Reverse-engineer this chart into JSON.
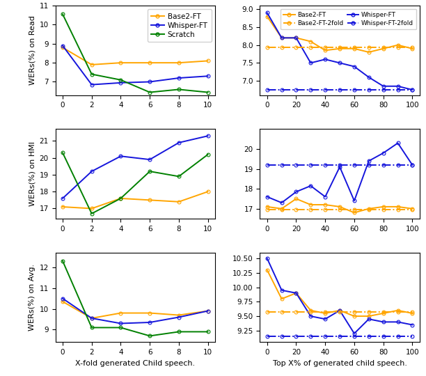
{
  "left_col": {
    "read": {
      "x": [
        0,
        2,
        4,
        6,
        8,
        10
      ],
      "base2_ft": [
        8.8,
        7.9,
        8.0,
        8.0,
        8.0,
        8.1
      ],
      "whisper_ft": [
        8.9,
        6.85,
        6.95,
        7.0,
        7.2,
        7.3
      ],
      "scratch": [
        10.55,
        7.4,
        7.1,
        6.45,
        6.6,
        6.45
      ],
      "ylim": [
        6.3,
        11.0
      ],
      "yticks": [
        7,
        8,
        9,
        10,
        11
      ],
      "ylabel": "WERs(%) on Read"
    },
    "hmi": {
      "x": [
        0,
        2,
        4,
        6,
        8,
        10
      ],
      "base2_ft": [
        17.1,
        17.0,
        17.6,
        17.5,
        17.4,
        18.0
      ],
      "whisper_ft": [
        17.6,
        19.2,
        20.1,
        19.9,
        20.9,
        21.3
      ],
      "scratch": [
        20.3,
        16.7,
        17.6,
        19.2,
        18.9,
        20.2
      ],
      "ylim": [
        16.4,
        21.7
      ],
      "yticks": [
        17,
        18,
        19,
        20,
        21
      ],
      "ylabel": "WERs(%) on HMI"
    },
    "avg": {
      "x": [
        0,
        2,
        4,
        6,
        8,
        10
      ],
      "base2_ft": [
        10.35,
        9.55,
        9.8,
        9.8,
        9.7,
        9.9
      ],
      "whisper_ft": [
        10.5,
        9.55,
        9.3,
        9.35,
        9.6,
        9.9
      ],
      "scratch": [
        12.3,
        9.1,
        9.1,
        8.7,
        8.9,
        8.9
      ],
      "ylim": [
        8.4,
        12.7
      ],
      "yticks": [
        9,
        10,
        11,
        12
      ],
      "ylabel": "WERs(%) on Avg.",
      "xlabel": "X-fold generated Child speech."
    }
  },
  "right_col": {
    "read": {
      "x": [
        0,
        10,
        20,
        30,
        40,
        50,
        60,
        70,
        80,
        90,
        100
      ],
      "base2_ft": [
        8.8,
        8.2,
        8.2,
        8.1,
        7.85,
        7.9,
        7.9,
        7.8,
        7.9,
        8.0,
        7.9
      ],
      "base2_ft_2fold": [
        7.93,
        7.93,
        7.93,
        7.93,
        7.93,
        7.93,
        7.93,
        7.93,
        7.93,
        7.93,
        7.93
      ],
      "whisper_ft": [
        8.9,
        8.2,
        8.2,
        7.5,
        7.6,
        7.5,
        7.4,
        7.1,
        6.85,
        6.85,
        6.75
      ],
      "whisper_ft_2fold": [
        6.75,
        6.75,
        6.75,
        6.75,
        6.75,
        6.75,
        6.75,
        6.75,
        6.75,
        6.75,
        6.75
      ],
      "ylim": [
        6.6,
        9.1
      ],
      "yticks": [
        7.0,
        7.5,
        8.0,
        8.5,
        9.0
      ],
      "ylabel": ""
    },
    "hmi": {
      "x": [
        0,
        10,
        20,
        30,
        40,
        50,
        60,
        70,
        80,
        90,
        100
      ],
      "base2_ft": [
        17.1,
        17.0,
        17.5,
        17.2,
        17.2,
        17.1,
        16.8,
        17.0,
        17.1,
        17.1,
        17.0
      ],
      "base2_ft_2fold": [
        16.95,
        16.95,
        16.95,
        16.95,
        16.95,
        16.95,
        16.95,
        16.95,
        16.95,
        16.95,
        16.95
      ],
      "whisper_ft": [
        17.6,
        17.3,
        17.85,
        18.15,
        17.6,
        19.1,
        17.4,
        19.4,
        19.8,
        20.3,
        19.2
      ],
      "whisper_ft_2fold": [
        19.2,
        19.2,
        19.2,
        19.2,
        19.2,
        19.2,
        19.2,
        19.2,
        19.2,
        19.2,
        19.2
      ],
      "ylim": [
        16.5,
        21.0
      ],
      "yticks": [
        17,
        18,
        19,
        20
      ],
      "ylabel": ""
    },
    "avg": {
      "x": [
        0,
        10,
        20,
        30,
        40,
        50,
        60,
        70,
        80,
        90,
        100
      ],
      "base2_ft": [
        10.3,
        9.8,
        9.9,
        9.6,
        9.55,
        9.6,
        9.5,
        9.5,
        9.55,
        9.6,
        9.55
      ],
      "base2_ft_2fold": [
        9.57,
        9.57,
        9.57,
        9.57,
        9.57,
        9.57,
        9.57,
        9.57,
        9.57,
        9.57,
        9.57
      ],
      "whisper_ft": [
        10.5,
        9.95,
        9.9,
        9.5,
        9.45,
        9.6,
        9.2,
        9.45,
        9.4,
        9.4,
        9.35
      ],
      "whisper_ft_2fold": [
        9.15,
        9.15,
        9.15,
        9.15,
        9.15,
        9.15,
        9.15,
        9.15,
        9.15,
        9.15,
        9.15
      ],
      "ylim": [
        9.05,
        10.6
      ],
      "yticks": [
        9.25,
        9.5,
        9.75,
        10.0,
        10.25,
        10.5
      ],
      "ylabel": "",
      "xlabel": "Top X% of generated child speech."
    }
  },
  "colors": {
    "orange": "#FFA500",
    "blue": "#1515DC",
    "green": "#008000"
  }
}
